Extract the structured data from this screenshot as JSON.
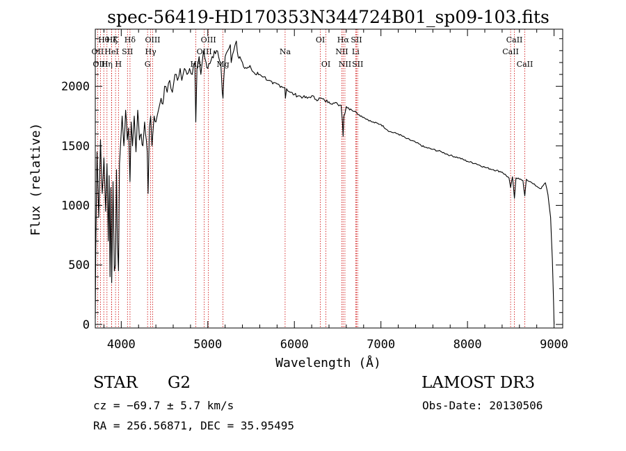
{
  "chart_data": {
    "type": "line",
    "title": "spec-56419-HD170353N344724B01_sp09-103.fits",
    "xlabel": "Wavelength (Å)",
    "ylabel": "Flux (relative)",
    "xlim": [
      3700,
      9100
    ],
    "ylim": [
      -30,
      2480
    ],
    "xticks": [
      4000,
      5000,
      6000,
      7000,
      8000,
      9000
    ],
    "xtick_labels": [
      "4000",
      "5000",
      "6000",
      "7000",
      "8000",
      "9000"
    ],
    "yticks": [
      0,
      500,
      1000,
      1500,
      2000
    ],
    "ytick_labels": [
      "0",
      "500",
      "1000",
      "1500",
      "2000"
    ],
    "grid": false,
    "series": [
      {
        "name": "spectrum",
        "x": [
          3700,
          3705,
          3720,
          3740,
          3760,
          3780,
          3800,
          3820,
          3835,
          3850,
          3860,
          3870,
          3880,
          3890,
          3905,
          3920,
          3933,
          3945,
          3955,
          3968,
          3980,
          3995,
          4010,
          4030,
          4050,
          4070,
          4085,
          4101,
          4115,
          4130,
          4150,
          4170,
          4190,
          4210,
          4230,
          4250,
          4270,
          4290,
          4300,
          4310,
          4325,
          4340,
          4355,
          4380,
          4400,
          4430,
          4460,
          4480,
          4500,
          4530,
          4560,
          4590,
          4620,
          4650,
          4680,
          4700,
          4730,
          4760,
          4790,
          4820,
          4850,
          4861,
          4875,
          4900,
          4920,
          4950,
          4980,
          5000,
          5050,
          5100,
          5150,
          5167,
          5175,
          5183,
          5200,
          5230,
          5260,
          5270,
          5300,
          5330,
          5350,
          5370,
          5400,
          5450,
          5500,
          5550,
          5600,
          5650,
          5700,
          5750,
          5800,
          5850,
          5890,
          5896,
          5910,
          5950,
          6000,
          6050,
          6100,
          6150,
          6200,
          6250,
          6300,
          6350,
          6400,
          6450,
          6500,
          6540,
          6555,
          6563,
          6572,
          6600,
          6650,
          6700,
          6750,
          6800,
          6900,
          7000,
          7100,
          7200,
          7300,
          7400,
          7500,
          7600,
          7700,
          7800,
          7900,
          8000,
          8100,
          8200,
          8300,
          8400,
          8480,
          8498,
          8520,
          8542,
          8560,
          8600,
          8640,
          8662,
          8680,
          8720,
          8760,
          8800,
          8850,
          8900,
          8930,
          8960,
          8980,
          8995,
          9000
        ],
        "y": [
          50,
          600,
          1450,
          900,
          1550,
          1100,
          1400,
          950,
          1350,
          700,
          1250,
          400,
          1150,
          350,
          1200,
          450,
          500,
          1300,
          700,
          450,
          1350,
          1550,
          1750,
          1500,
          1800,
          1550,
          1650,
          1200,
          1700,
          1500,
          1750,
          1450,
          1800,
          1550,
          1600,
          1500,
          1700,
          1550,
          1450,
          1100,
          1650,
          1750,
          1500,
          1750,
          1700,
          1800,
          1900,
          1850,
          2000,
          1950,
          2050,
          1950,
          2100,
          2050,
          2150,
          2050,
          2150,
          2100,
          2150,
          2100,
          2200,
          1700,
          2150,
          2250,
          2100,
          2300,
          2200,
          2150,
          2250,
          2300,
          2200,
          1950,
          1900,
          2050,
          2250,
          2300,
          2350,
          2200,
          2300,
          2380,
          2250,
          2250,
          2200,
          2150,
          2150,
          2100,
          2100,
          2080,
          2050,
          2020,
          2020,
          2000,
          1990,
          1900,
          1980,
          1950,
          1930,
          1920,
          1910,
          1900,
          1920,
          1890,
          1900,
          1880,
          1870,
          1860,
          1850,
          1840,
          1700,
          1580,
          1750,
          1830,
          1810,
          1790,
          1760,
          1740,
          1700,
          1680,
          1620,
          1600,
          1560,
          1530,
          1490,
          1470,
          1450,
          1420,
          1400,
          1370,
          1350,
          1320,
          1300,
          1280,
          1230,
          1150,
          1240,
          1060,
          1230,
          1220,
          1210,
          1080,
          1220,
          1200,
          1180,
          1160,
          1140,
          1190,
          1090,
          900,
          550,
          180,
          0
        ]
      }
    ],
    "line_markers": [
      {
        "label": "Hθ",
        "wavelength": 3798,
        "row": 1
      },
      {
        "label": "OII",
        "wavelength": 3727,
        "row": 2
      },
      {
        "label": "OIII",
        "wavelength": 3760,
        "row": 3
      },
      {
        "label": "K",
        "wavelength": 3934,
        "row": 1
      },
      {
        "label": "HeI",
        "wavelength": 3889,
        "row": 2
      },
      {
        "label": "Hη",
        "wavelength": 3835,
        "row": 3
      },
      {
        "label": "Hζ",
        "wavelength": 3889,
        "row": 1
      },
      {
        "label": "SII",
        "wavelength": 4072,
        "row": 2
      },
      {
        "label": "H",
        "wavelength": 3968,
        "row": 3
      },
      {
        "label": "Hδ",
        "wavelength": 4101,
        "row": 1
      },
      {
        "label": "OIII",
        "wavelength": 4363,
        "row": 1
      },
      {
        "label": "Hγ",
        "wavelength": 4340,
        "row": 2
      },
      {
        "label": "G",
        "wavelength": 4304,
        "row": 3
      },
      {
        "label": "OIII",
        "wavelength": 5007,
        "row": 1
      },
      {
        "label": "OIII",
        "wavelength": 4959,
        "row": 2
      },
      {
        "label": "Hβ",
        "wavelength": 4861,
        "row": 3
      },
      {
        "label": "Mg",
        "wavelength": 5175,
        "row": 3
      },
      {
        "label": "Na",
        "wavelength": 5893,
        "row": 2
      },
      {
        "label": "OI",
        "wavelength": 6300,
        "row": 1
      },
      {
        "label": "OI",
        "wavelength": 6364,
        "row": 3
      },
      {
        "label": "Hα",
        "wavelength": 6563,
        "row": 1
      },
      {
        "label": "NII",
        "wavelength": 6548,
        "row": 2
      },
      {
        "label": "NII",
        "wavelength": 6584,
        "row": 3
      },
      {
        "label": "SII",
        "wavelength": 6717,
        "row": 1
      },
      {
        "label": "Li",
        "wavelength": 6708,
        "row": 2
      },
      {
        "label": "SII",
        "wavelength": 6731,
        "row": 3
      },
      {
        "label": "CaII",
        "wavelength": 8542,
        "row": 1
      },
      {
        "label": "CaII",
        "wavelength": 8498,
        "row": 2
      },
      {
        "label": "CaII",
        "wavelength": 8662,
        "row": 3
      }
    ]
  },
  "info": {
    "object_class": "STAR",
    "subclass": "G2",
    "survey": "LAMOST DR3",
    "redshift_line": "cz = −69.7 ± 5.7 km/s",
    "obs_date": "Obs-Date: 20130506",
    "coords": "RA = 256.56871, DEC =  35.95495"
  },
  "colors": {
    "line": "#000000",
    "marker": "#cc0000",
    "axes": "#000000"
  }
}
